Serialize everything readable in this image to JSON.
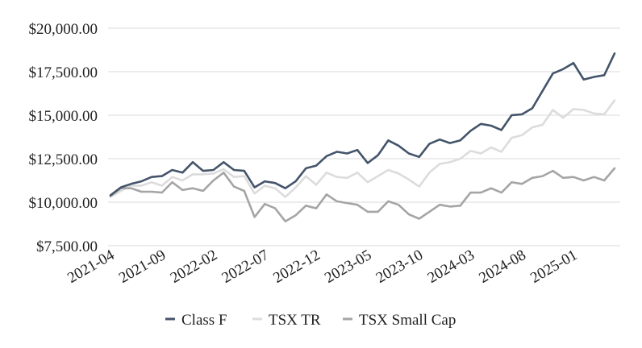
{
  "chart_data": {
    "type": "line",
    "x": [
      "2021-04",
      "2021-05",
      "2021-06",
      "2021-07",
      "2021-08",
      "2021-09",
      "2021-10",
      "2021-11",
      "2021-12",
      "2022-01",
      "2022-02",
      "2022-03",
      "2022-04",
      "2022-05",
      "2022-06",
      "2022-07",
      "2022-08",
      "2022-09",
      "2022-10",
      "2022-11",
      "2022-12",
      "2023-01",
      "2023-02",
      "2023-03",
      "2023-04",
      "2023-05",
      "2023-06",
      "2023-07",
      "2023-08",
      "2023-09",
      "2023-10",
      "2023-11",
      "2023-12",
      "2024-01",
      "2024-02",
      "2024-03",
      "2024-04",
      "2024-05",
      "2024-06",
      "2024-07",
      "2024-08",
      "2024-09",
      "2024-10",
      "2024-11",
      "2024-12",
      "2025-01",
      "2025-02",
      "2025-03",
      "2025-04",
      "2025-05"
    ],
    "x_tick_labels": [
      "2021-04",
      "2021-09",
      "2022-02",
      "2022-07",
      "2022-12",
      "2023-05",
      "2023-10",
      "2024-03",
      "2024-08",
      "2025-01"
    ],
    "y_tick_labels": [
      "$20,000.00",
      "$17,500.00",
      "$15,000.00",
      "$12,500.00",
      "$10,000.00",
      "$7,500.00"
    ],
    "ylim": [
      7500,
      20000
    ],
    "grid": true,
    "legend_position": "bottom",
    "series": [
      {
        "name": "Class F",
        "color": "#44546a",
        "values": [
          10400,
          10850,
          11050,
          11200,
          11450,
          11500,
          11850,
          11700,
          12300,
          11800,
          11850,
          12300,
          11850,
          11800,
          10850,
          11200,
          11100,
          10800,
          11200,
          11950,
          12100,
          12650,
          12900,
          12800,
          13000,
          12250,
          12700,
          13550,
          13250,
          12800,
          12600,
          13350,
          13600,
          13400,
          13550,
          14100,
          14500,
          14400,
          14150,
          15000,
          15050,
          15400,
          16400,
          17400,
          17650,
          18000,
          17050,
          17200,
          17300,
          18550
        ]
      },
      {
        "name": "TSX TR",
        "color": "#dcdcdc",
        "values": [
          10300,
          10650,
          10950,
          10950,
          11150,
          10950,
          11450,
          11250,
          11600,
          11600,
          11650,
          11900,
          11450,
          11500,
          10500,
          10950,
          10800,
          10300,
          10850,
          11500,
          11000,
          11700,
          11450,
          11400,
          11700,
          11150,
          11500,
          11850,
          11650,
          11300,
          10900,
          11700,
          12200,
          12300,
          12500,
          12950,
          12800,
          13150,
          12900,
          13700,
          13850,
          14300,
          14450,
          15300,
          14850,
          15350,
          15300,
          15100,
          15050,
          15850
        ]
      },
      {
        "name": "TSX Small Cap",
        "color": "#a5a5a5",
        "values": [
          10350,
          10800,
          10800,
          10600,
          10600,
          10550,
          11150,
          10700,
          10800,
          10650,
          11250,
          11700,
          10900,
          10650,
          9150,
          9900,
          9650,
          8900,
          9250,
          9800,
          9650,
          10450,
          10050,
          9950,
          9850,
          9450,
          9450,
          10050,
          9850,
          9300,
          9050,
          9450,
          9850,
          9750,
          9800,
          10550,
          10550,
          10800,
          10550,
          11150,
          11050,
          11400,
          11500,
          11800,
          11400,
          11450,
          11250,
          11450,
          11250,
          11950
        ]
      }
    ]
  }
}
